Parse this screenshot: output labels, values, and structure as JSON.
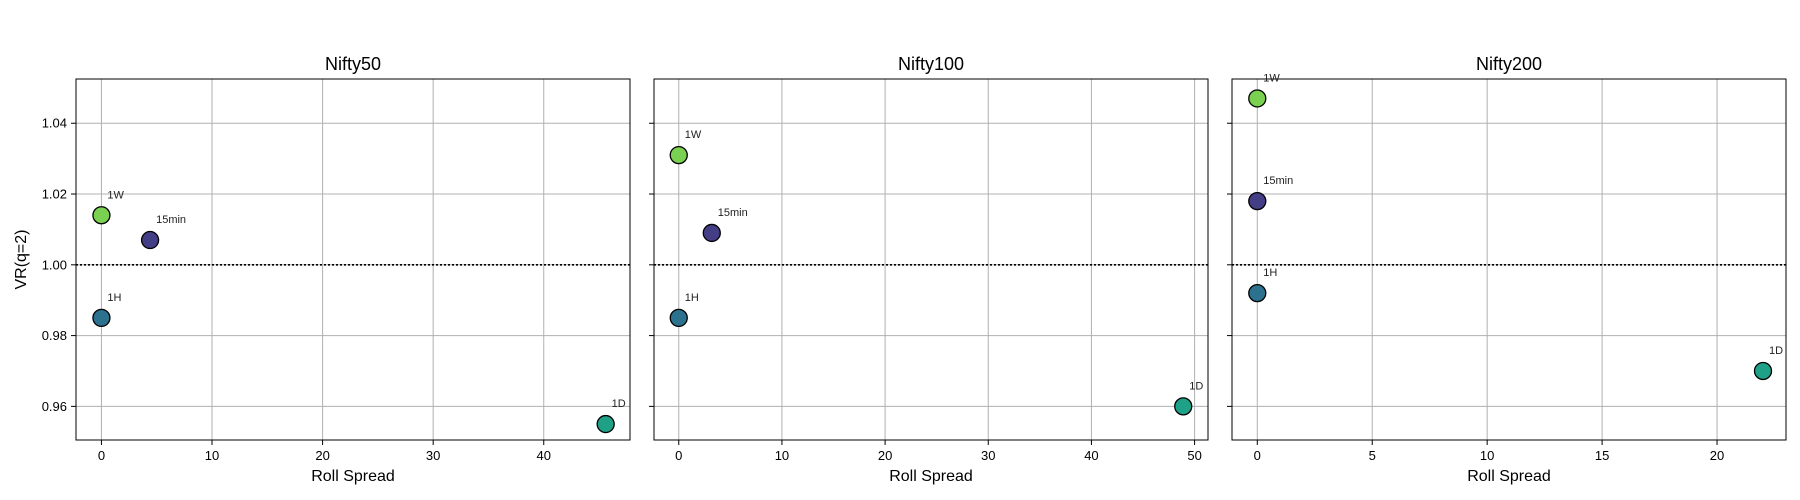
{
  "chart_data": [
    {
      "type": "scatter",
      "title": "Nifty50",
      "xlabel": "Roll Spread",
      "ylabel": "VR(q=2)",
      "xlim": [
        -2.3,
        47.8
      ],
      "ylim": [
        0.9505,
        1.0525
      ],
      "xticks": [
        0,
        10,
        20,
        30,
        40
      ],
      "yticks": [
        0.96,
        0.98,
        1.0,
        1.02,
        1.04
      ],
      "reference_y": 1.0,
      "grid": true,
      "points": [
        {
          "label": "1W",
          "x": 0.0,
          "y": 1.014
        },
        {
          "label": "15min",
          "x": 4.4,
          "y": 1.007
        },
        {
          "label": "1H",
          "x": 0.0,
          "y": 0.985
        },
        {
          "label": "1D",
          "x": 45.6,
          "y": 0.955
        }
      ]
    },
    {
      "type": "scatter",
      "title": "Nifty100",
      "xlabel": "Roll Spread",
      "ylabel": "",
      "xlim": [
        -2.4,
        51.3
      ],
      "ylim": [
        0.9505,
        1.0525
      ],
      "xticks": [
        0,
        10,
        20,
        30,
        40,
        50
      ],
      "yticks": [
        0.96,
        0.98,
        1.0,
        1.02,
        1.04
      ],
      "reference_y": 1.0,
      "grid": true,
      "points": [
        {
          "label": "1W",
          "x": 0.0,
          "y": 1.031
        },
        {
          "label": "15min",
          "x": 3.2,
          "y": 1.009
        },
        {
          "label": "1H",
          "x": 0.0,
          "y": 0.985
        },
        {
          "label": "1D",
          "x": 48.9,
          "y": 0.96
        }
      ]
    },
    {
      "type": "scatter",
      "title": "Nifty200",
      "xlabel": "Roll Spread",
      "ylabel": "",
      "xlim": [
        -1.1,
        23.0
      ],
      "ylim": [
        0.9505,
        1.0525
      ],
      "xticks": [
        0,
        5,
        10,
        15,
        20
      ],
      "yticks": [
        0.96,
        0.98,
        1.0,
        1.02,
        1.04
      ],
      "reference_y": 1.0,
      "grid": true,
      "points": [
        {
          "label": "1W",
          "x": 0.0,
          "y": 1.047
        },
        {
          "label": "15min",
          "x": 0.0,
          "y": 1.018
        },
        {
          "label": "1H",
          "x": 0.0,
          "y": 0.992
        },
        {
          "label": "1D",
          "x": 22.0,
          "y": 0.97
        }
      ]
    }
  ],
  "colors": {
    "15min": "#433e85",
    "1H": "#2c728e",
    "1D": "#1fa187",
    "1W": "#7ad151"
  }
}
